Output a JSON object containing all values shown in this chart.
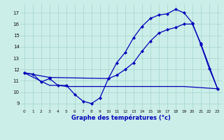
{
  "xlabel": "Graphe des températures (°c)",
  "bg_color": "#cceee8",
  "grid_color": "#aad8d2",
  "line_color": "#0000bb",
  "xlim": [
    -0.5,
    23.5
  ],
  "ylim": [
    8.5,
    17.75
  ],
  "yticks": [
    9,
    10,
    11,
    12,
    13,
    14,
    15,
    16,
    17
  ],
  "xticks": [
    0,
    1,
    2,
    3,
    4,
    5,
    6,
    7,
    8,
    9,
    10,
    11,
    12,
    13,
    14,
    15,
    16,
    17,
    18,
    19,
    20,
    21,
    22,
    23
  ],
  "s1_x": [
    0,
    1,
    2,
    3,
    4,
    5,
    6,
    7,
    8,
    9,
    10,
    11,
    12,
    13,
    14,
    15,
    16,
    17,
    18,
    19,
    20,
    21,
    22,
    23
  ],
  "s1_y": [
    11.7,
    11.6,
    10.9,
    11.2,
    10.6,
    10.6,
    9.8,
    9.2,
    9.0,
    9.5,
    11.2,
    12.6,
    13.5,
    14.8,
    15.8,
    16.5,
    16.8,
    16.9,
    17.3,
    17.0,
    16.1,
    14.2,
    12.1,
    10.3
  ],
  "s2_x": [
    0,
    3,
    10,
    11,
    12,
    13,
    14,
    15,
    16,
    17,
    18,
    19,
    20,
    21,
    23
  ],
  "s2_y": [
    11.7,
    11.3,
    11.2,
    11.5,
    12.0,
    12.6,
    13.6,
    14.5,
    15.2,
    15.5,
    15.7,
    16.0,
    16.0,
    14.3,
    10.3
  ],
  "s3_x": [
    0,
    3,
    4,
    5,
    10,
    19,
    23
  ],
  "s3_y": [
    11.7,
    10.6,
    10.6,
    10.5,
    10.5,
    10.5,
    10.3
  ]
}
